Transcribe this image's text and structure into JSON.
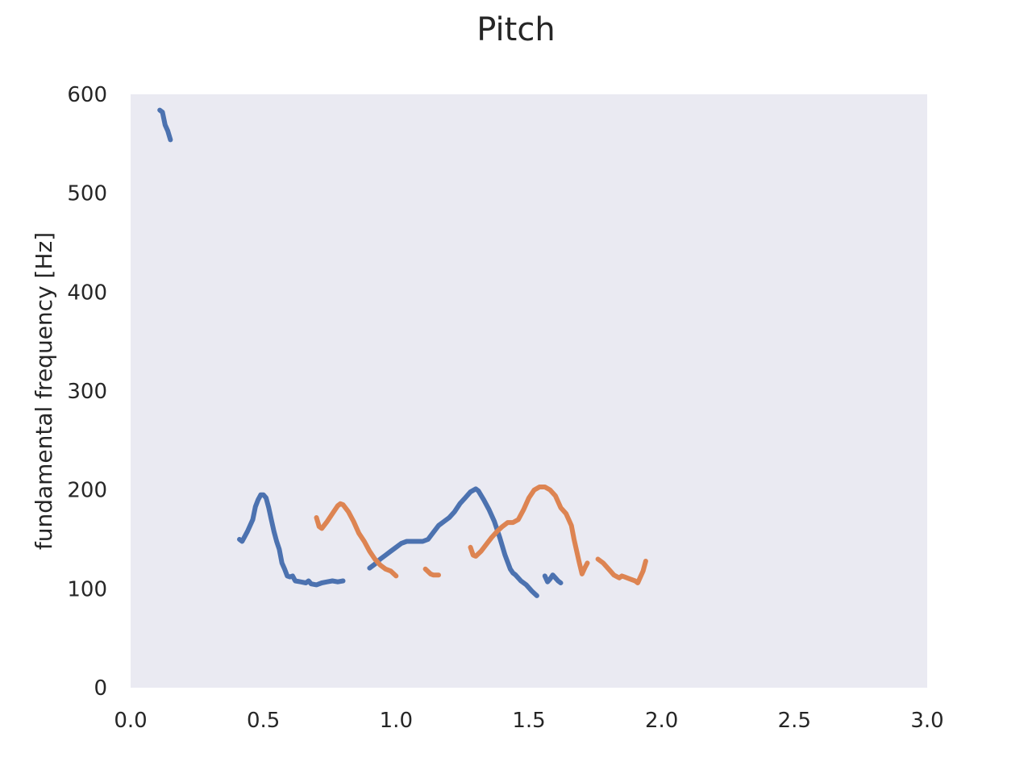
{
  "chart_data": {
    "type": "line",
    "title": "Pitch",
    "xlabel": "",
    "ylabel": "fundamental frequency [Hz]",
    "xlim": [
      0.0,
      3.0
    ],
    "ylim": [
      0,
      600
    ],
    "xticks": [
      "0.0",
      "0.5",
      "1.0",
      "1.5",
      "2.0",
      "2.5",
      "3.0"
    ],
    "yticks": [
      "0",
      "100",
      "200",
      "300",
      "400",
      "500",
      "600"
    ],
    "grid": false,
    "legend": "none",
    "background_color": "#eaeaf2",
    "series": [
      {
        "color": "#4c72b0",
        "segments": [
          [
            [
              0.11,
              584
            ],
            [
              0.12,
              582
            ],
            [
              0.13,
              569
            ],
            [
              0.14,
              563
            ],
            [
              0.15,
              554
            ]
          ],
          [
            [
              0.41,
              150
            ],
            [
              0.42,
              148
            ],
            [
              0.44,
              158
            ],
            [
              0.46,
              170
            ],
            [
              0.47,
              183
            ],
            [
              0.48,
              190
            ],
            [
              0.49,
              195
            ],
            [
              0.5,
              195
            ],
            [
              0.51,
              192
            ],
            [
              0.52,
              182
            ],
            [
              0.53,
              170
            ],
            [
              0.54,
              158
            ],
            [
              0.55,
              148
            ],
            [
              0.56,
              140
            ],
            [
              0.57,
              126
            ],
            [
              0.58,
              120
            ],
            [
              0.59,
              113
            ],
            [
              0.6,
              112
            ],
            [
              0.61,
              113
            ],
            [
              0.62,
              108
            ],
            [
              0.64,
              107
            ],
            [
              0.66,
              106
            ],
            [
              0.67,
              108
            ],
            [
              0.68,
              105
            ],
            [
              0.7,
              104
            ],
            [
              0.72,
              106
            ],
            [
              0.74,
              107
            ],
            [
              0.76,
              108
            ],
            [
              0.78,
              107
            ],
            [
              0.8,
              108
            ]
          ],
          [
            [
              0.9,
              121
            ],
            [
              0.92,
              125
            ],
            [
              0.94,
              130
            ],
            [
              0.96,
              134
            ],
            [
              0.98,
              138
            ],
            [
              1.0,
              142
            ],
            [
              1.02,
              146
            ],
            [
              1.04,
              148
            ],
            [
              1.06,
              148
            ],
            [
              1.08,
              148
            ],
            [
              1.1,
              148
            ],
            [
              1.12,
              150
            ],
            [
              1.14,
              157
            ],
            [
              1.16,
              164
            ],
            [
              1.18,
              168
            ],
            [
              1.2,
              172
            ],
            [
              1.22,
              178
            ],
            [
              1.24,
              186
            ],
            [
              1.26,
              192
            ],
            [
              1.28,
              198
            ],
            [
              1.3,
              201
            ],
            [
              1.31,
              199
            ],
            [
              1.33,
              190
            ],
            [
              1.35,
              180
            ],
            [
              1.37,
              168
            ],
            [
              1.39,
              152
            ],
            [
              1.41,
              134
            ],
            [
              1.43,
              120
            ],
            [
              1.44,
              116
            ],
            [
              1.45,
              114
            ],
            [
              1.47,
              108
            ],
            [
              1.49,
              104
            ],
            [
              1.51,
              98
            ],
            [
              1.53,
              93
            ]
          ],
          [
            [
              1.56,
              113
            ],
            [
              1.57,
              107
            ],
            [
              1.58,
              110
            ],
            [
              1.59,
              114
            ],
            [
              1.6,
              111
            ],
            [
              1.61,
              108
            ],
            [
              1.62,
              106
            ]
          ]
        ]
      },
      {
        "color": "#dd8452",
        "segments": [
          [
            [
              0.7,
              172
            ],
            [
              0.71,
              163
            ],
            [
              0.72,
              161
            ],
            [
              0.74,
              168
            ],
            [
              0.76,
              176
            ],
            [
              0.78,
              184
            ],
            [
              0.79,
              186
            ],
            [
              0.8,
              185
            ],
            [
              0.82,
              178
            ],
            [
              0.84,
              168
            ],
            [
              0.86,
              156
            ],
            [
              0.88,
              148
            ],
            [
              0.9,
              138
            ],
            [
              0.92,
              130
            ],
            [
              0.94,
              124
            ],
            [
              0.96,
              120
            ],
            [
              0.98,
              118
            ],
            [
              1.0,
              113
            ]
          ],
          [
            [
              1.11,
              120
            ],
            [
              1.13,
              115
            ],
            [
              1.14,
              114
            ],
            [
              1.16,
              114
            ]
          ],
          [
            [
              1.28,
              142
            ],
            [
              1.29,
              134
            ],
            [
              1.3,
              133
            ],
            [
              1.32,
              138
            ],
            [
              1.34,
              145
            ],
            [
              1.36,
              152
            ],
            [
              1.38,
              158
            ],
            [
              1.4,
              163
            ],
            [
              1.42,
              167
            ],
            [
              1.44,
              167
            ],
            [
              1.46,
              170
            ],
            [
              1.48,
              180
            ],
            [
              1.5,
              192
            ],
            [
              1.52,
              200
            ],
            [
              1.54,
              203
            ],
            [
              1.56,
              203
            ],
            [
              1.58,
              200
            ],
            [
              1.6,
              194
            ],
            [
              1.62,
              182
            ],
            [
              1.64,
              176
            ],
            [
              1.66,
              164
            ],
            [
              1.67,
              150
            ],
            [
              1.68,
              138
            ],
            [
              1.69,
              126
            ],
            [
              1.7,
              115
            ],
            [
              1.71,
              121
            ],
            [
              1.72,
              126
            ]
          ],
          [
            [
              1.76,
              130
            ],
            [
              1.78,
              126
            ],
            [
              1.8,
              120
            ],
            [
              1.82,
              114
            ],
            [
              1.84,
              111
            ],
            [
              1.85,
              113
            ],
            [
              1.86,
              112
            ],
            [
              1.88,
              110
            ],
            [
              1.9,
              108
            ],
            [
              1.91,
              106
            ],
            [
              1.92,
              112
            ],
            [
              1.93,
              118
            ],
            [
              1.94,
              128
            ]
          ]
        ]
      }
    ]
  }
}
